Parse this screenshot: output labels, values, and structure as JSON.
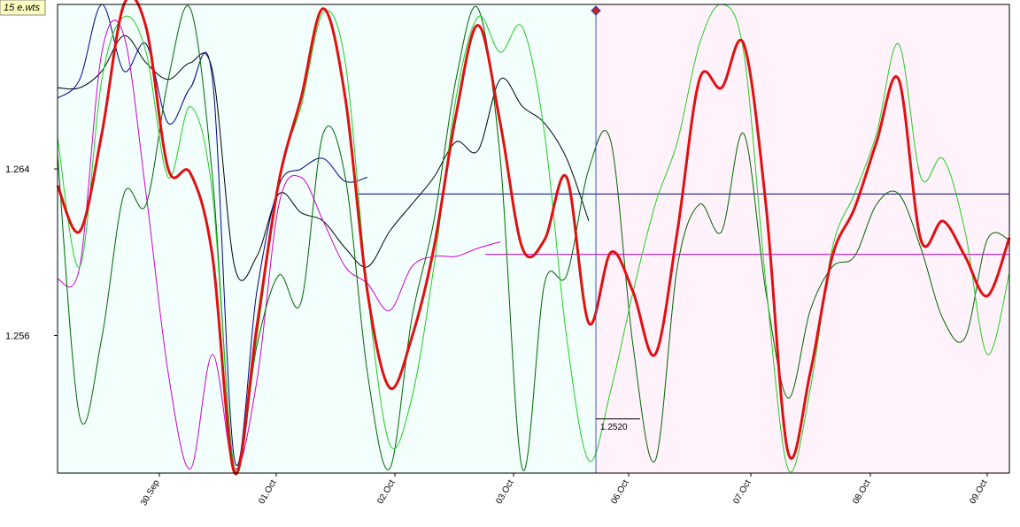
{
  "chart_data": {
    "type": "line",
    "title": "15 e.wts",
    "x": [
      0,
      1,
      2,
      3,
      4,
      5,
      6,
      7,
      8,
      9,
      10,
      11,
      12,
      13,
      14,
      15,
      16,
      17,
      18,
      19,
      20,
      21,
      22,
      23,
      24,
      25,
      26,
      27,
      28,
      29,
      30,
      31,
      32,
      33,
      34,
      35,
      36,
      37,
      38,
      39,
      40,
      41,
      42,
      43
    ],
    "xlim": [
      0,
      43
    ],
    "xticks": [
      {
        "value": 4.6,
        "label": "30.Sep"
      },
      {
        "value": 9.88,
        "label": "01.Oct"
      },
      {
        "value": 15.24,
        "label": "02.Oct"
      },
      {
        "value": 20.6,
        "label": "03.Oct"
      },
      {
        "value": 25.8,
        "label": "06.Oct"
      },
      {
        "value": 31.32,
        "label": "07.Oct"
      },
      {
        "value": 36.72,
        "label": "08.Oct"
      },
      {
        "value": 42.0,
        "label": "09.Oct"
      }
    ],
    "ylim": [
      1.2494,
      1.2719
    ],
    "yticks": [
      1.256,
      1.264
    ],
    "regions": [
      {
        "x": [
          0,
          24.32
        ],
        "color": "#f2fffd"
      },
      {
        "x": [
          24.32,
          43
        ],
        "color": "#fff2fb"
      }
    ],
    "cursor_x": 24.32,
    "levels": [
      {
        "value": 1.2628,
        "x_start": 13.6,
        "color": "#000080"
      },
      {
        "value": 1.2599,
        "x_start": 19.32,
        "color": "#cc00cc"
      }
    ],
    "annotations": [
      {
        "text": "1.2520",
        "value": 1.252,
        "x": 24.32
      }
    ],
    "series": [
      {
        "color": "#000000",
        "line_width": 1,
        "values": [
          1.2679,
          1.2679,
          1.2687,
          1.2704,
          1.2691,
          1.2683,
          1.2691,
          1.2687,
          1.2593,
          1.2598,
          1.2628,
          1.2619,
          1.2615,
          1.2602,
          1.2593,
          1.261,
          1.2623,
          1.2636,
          1.2653,
          1.2649,
          1.2683,
          1.267,
          1.2662,
          1.2645,
          1.2615,
          null,
          null,
          null,
          null,
          null,
          null,
          null,
          null,
          null,
          null,
          null,
          null,
          null,
          null,
          null,
          null,
          null,
          null,
          null
        ]
      },
      {
        "color": "#000080",
        "line_width": 1,
        "values": [
          1.2674,
          1.2683,
          1.2719,
          1.2687,
          1.27,
          1.2662,
          1.2679,
          1.2683,
          1.25,
          1.2581,
          1.2632,
          1.264,
          1.2645,
          1.2634,
          1.2636,
          null,
          null,
          null,
          null,
          null,
          null,
          null,
          null,
          null,
          null,
          null,
          null,
          null,
          null,
          null,
          null,
          null,
          null,
          null,
          null,
          null,
          null,
          null,
          null,
          null,
          null,
          null,
          null,
          null
        ]
      },
      {
        "color": "#cc00cc",
        "line_width": 1,
        "values": [
          1.2587,
          1.2593,
          1.2696,
          1.2704,
          1.2628,
          1.2542,
          1.2496,
          1.2551,
          1.2496,
          1.2538,
          1.2623,
          1.2636,
          1.2615,
          1.2593,
          1.2585,
          1.2572,
          1.2593,
          1.2598,
          1.2598,
          1.2602,
          1.2605,
          null,
          null,
          null,
          null,
          null,
          null,
          null,
          null,
          null,
          null,
          null,
          null,
          null,
          null,
          null,
          null,
          null,
          null,
          null,
          null,
          null,
          null,
          null
        ]
      },
      {
        "color": "#006400",
        "line_width": 1,
        "values": [
          1.2647,
          1.2521,
          1.2559,
          1.2628,
          1.2623,
          1.2683,
          1.2717,
          1.2636,
          1.2496,
          1.2555,
          1.2589,
          1.2576,
          1.2657,
          1.2636,
          1.2542,
          1.2496,
          1.2568,
          1.2615,
          1.2683,
          1.2717,
          1.2645,
          1.2496,
          1.2585,
          1.2589,
          1.264,
          1.2653,
          1.2555,
          1.25,
          1.2593,
          1.2623,
          1.261,
          1.2657,
          1.2581,
          1.253,
          1.2572,
          1.2593,
          1.2598,
          1.2623,
          1.2628,
          1.2602,
          1.2568,
          1.2559,
          1.2606,
          1.2606
        ]
      },
      {
        "color": "#22cc22",
        "line_width": 1,
        "values": [
          1.2655,
          1.2593,
          1.2683,
          1.2713,
          1.2696,
          1.2636,
          1.267,
          1.2628,
          1.2496,
          1.2559,
          1.2636,
          1.267,
          1.2715,
          1.2691,
          1.2581,
          1.2508,
          1.253,
          1.2593,
          1.2674,
          1.2713,
          1.2696,
          1.2708,
          1.2657,
          1.2559,
          1.25,
          1.2534,
          1.2581,
          1.2623,
          1.2653,
          1.27,
          1.2719,
          1.2696,
          1.2585,
          1.2496,
          1.2534,
          1.2602,
          1.2628,
          1.2657,
          1.27,
          1.2636,
          1.2645,
          1.261,
          1.2551,
          1.259
        ]
      },
      {
        "color": "#e01010",
        "line_width": 3,
        "values": [
          1.2632,
          1.261,
          1.2657,
          1.2719,
          1.2708,
          1.264,
          1.2638,
          1.2598,
          1.2494,
          1.2564,
          1.2634,
          1.2674,
          1.2717,
          1.2674,
          1.2581,
          1.2535,
          1.2559,
          1.2602,
          1.2666,
          1.2709,
          1.2662,
          1.2602,
          1.2606,
          1.2636,
          1.2566,
          1.26,
          1.2581,
          1.2551,
          1.261,
          1.2683,
          1.2679,
          1.27,
          1.2623,
          1.2504,
          1.2542,
          1.2598,
          1.2621,
          1.2653,
          1.2683,
          1.2606,
          1.2615,
          1.2598,
          1.2579,
          1.2607
        ]
      }
    ]
  }
}
